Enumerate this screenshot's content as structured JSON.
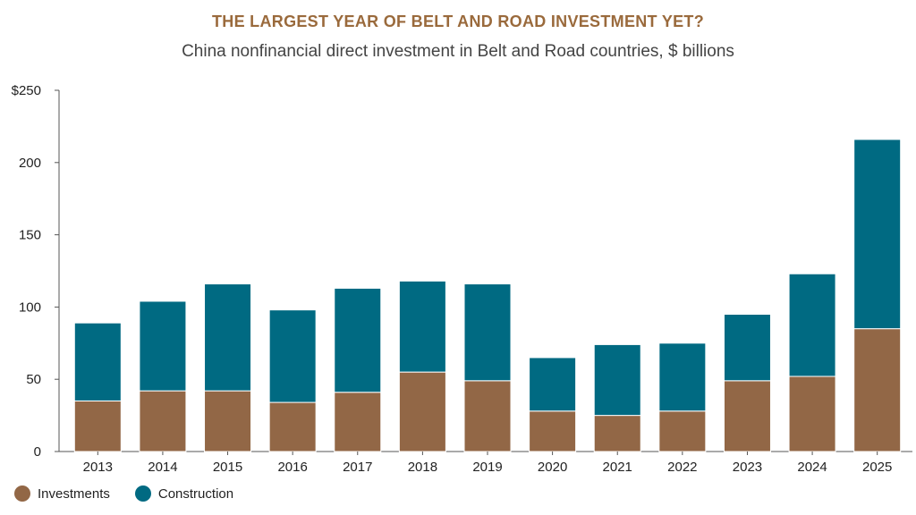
{
  "colors": {
    "investments": "#926746",
    "construction": "#006a82",
    "title": "#9a6a3c"
  },
  "chart_data": {
    "type": "bar",
    "stacked": true,
    "title": "THE LARGEST YEAR OF BELT AND ROAD INVESTMENT YET?",
    "subtitle": "China nonfinancial direct investment in Belt and Road countries, $ billions",
    "categories": [
      "2013",
      "2014",
      "2015",
      "2016",
      "2017",
      "2018",
      "2019",
      "2020",
      "2021",
      "2022",
      "2023",
      "2024",
      "2025"
    ],
    "series": [
      {
        "name": "Investments",
        "values": [
          35,
          42,
          42,
          34,
          41,
          55,
          49,
          28,
          25,
          28,
          49,
          52,
          85
        ]
      },
      {
        "name": "Construction",
        "values": [
          54,
          62,
          74,
          64,
          72,
          63,
          67,
          37,
          49,
          47,
          46,
          71,
          131
        ]
      }
    ],
    "ylim": [
      0,
      250
    ],
    "yticks": [
      0,
      50,
      100,
      150,
      200,
      250
    ],
    "ytick_labels": [
      "0",
      "50",
      "100",
      "150",
      "200",
      "$250"
    ],
    "legend_position": "bottom-left",
    "grid": false
  }
}
